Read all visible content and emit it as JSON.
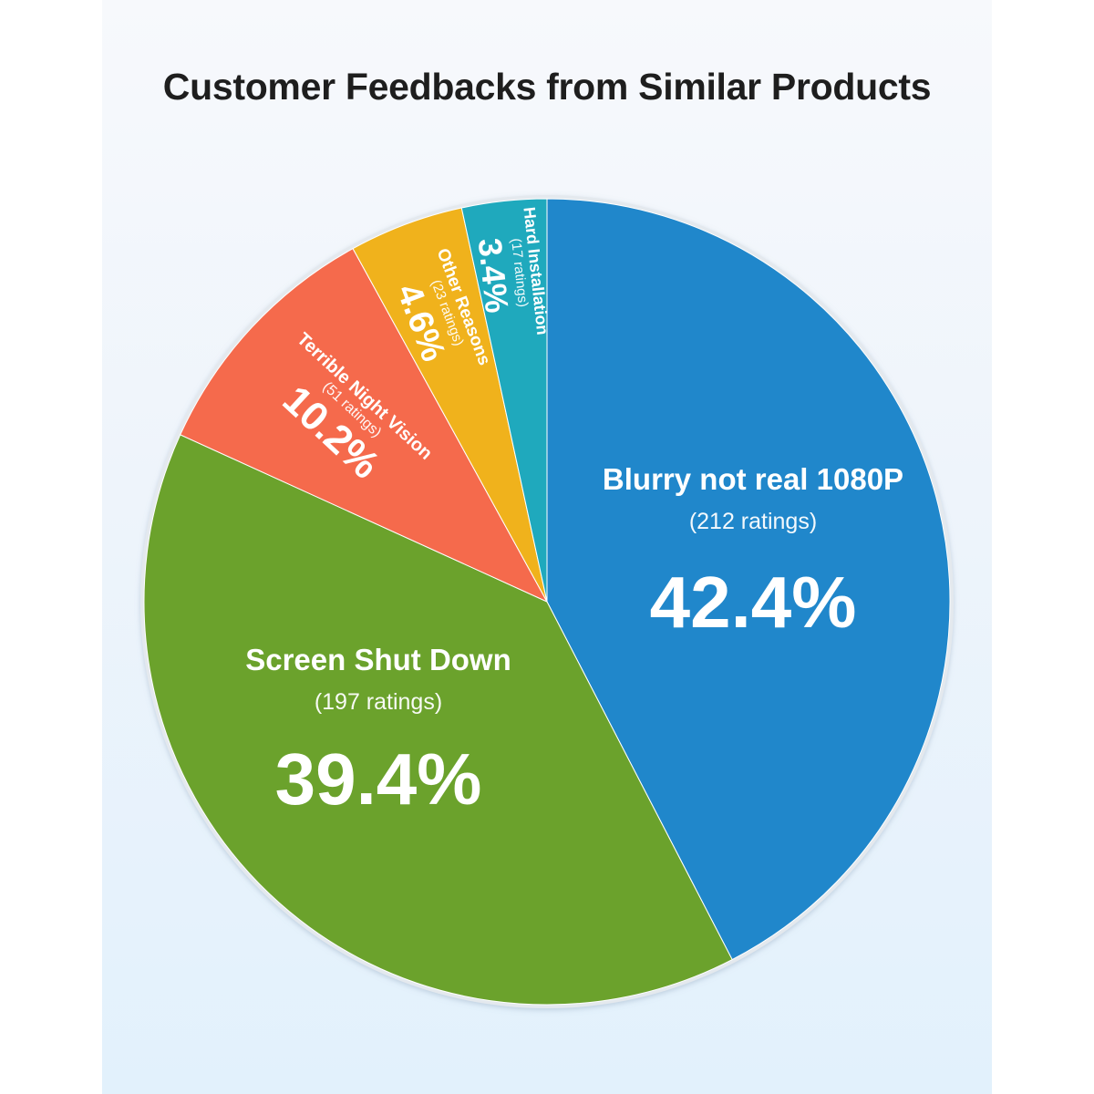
{
  "title": "Customer Feedbacks from Similar Products",
  "chart_data": {
    "type": "pie",
    "title": "Customer Feedbacks from Similar Products",
    "slices": [
      {
        "label": "Blurry not real 1080P",
        "ratings_text": "(212 ratings)",
        "ratings": 212,
        "percent": 42.4,
        "percent_text": "42.4%",
        "color": "#2087cb"
      },
      {
        "label": "Screen Shut Down",
        "ratings_text": "(197 ratings)",
        "ratings": 197,
        "percent": 39.4,
        "percent_text": "39.4%",
        "color": "#6ba22c"
      },
      {
        "label": "Terrible Night Vision",
        "ratings_text": "(51 ratings)",
        "ratings": 51,
        "percent": 10.2,
        "percent_text": "10.2%",
        "color": "#f56a4c"
      },
      {
        "label": "Other Reasons",
        "ratings_text": "(23 ratings)",
        "ratings": 23,
        "percent": 4.6,
        "percent_text": "4.6%",
        "color": "#f0b21c"
      },
      {
        "label": "Hard Installation",
        "ratings_text": "(17 ratings)",
        "ratings": 17,
        "percent": 3.4,
        "percent_text": "3.4%",
        "color": "#1fa9bd"
      }
    ]
  }
}
